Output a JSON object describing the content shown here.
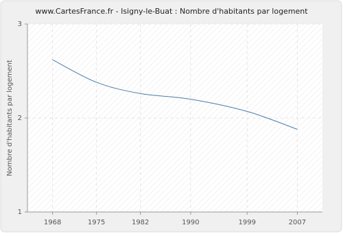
{
  "chart_data": {
    "type": "line",
    "title": "www.CartesFrance.fr - Isigny-le-Buat : Nombre d'habitants par logement",
    "y_label": "Nombre d'habitants par logement",
    "x": [
      1968,
      1975,
      1982,
      1990,
      1999,
      2007
    ],
    "series": [
      {
        "color": "#4a7aa8",
        "values": [
          2.62,
          2.38,
          2.26,
          2.2,
          2.07,
          1.88
        ]
      }
    ],
    "xlim": [
      1964,
      2011
    ],
    "xticks": [
      1968,
      1975,
      1982,
      1990,
      1999,
      2007
    ],
    "ylim": [
      1,
      3
    ],
    "yticks": [
      1,
      2,
      3
    ],
    "grid": true
  }
}
